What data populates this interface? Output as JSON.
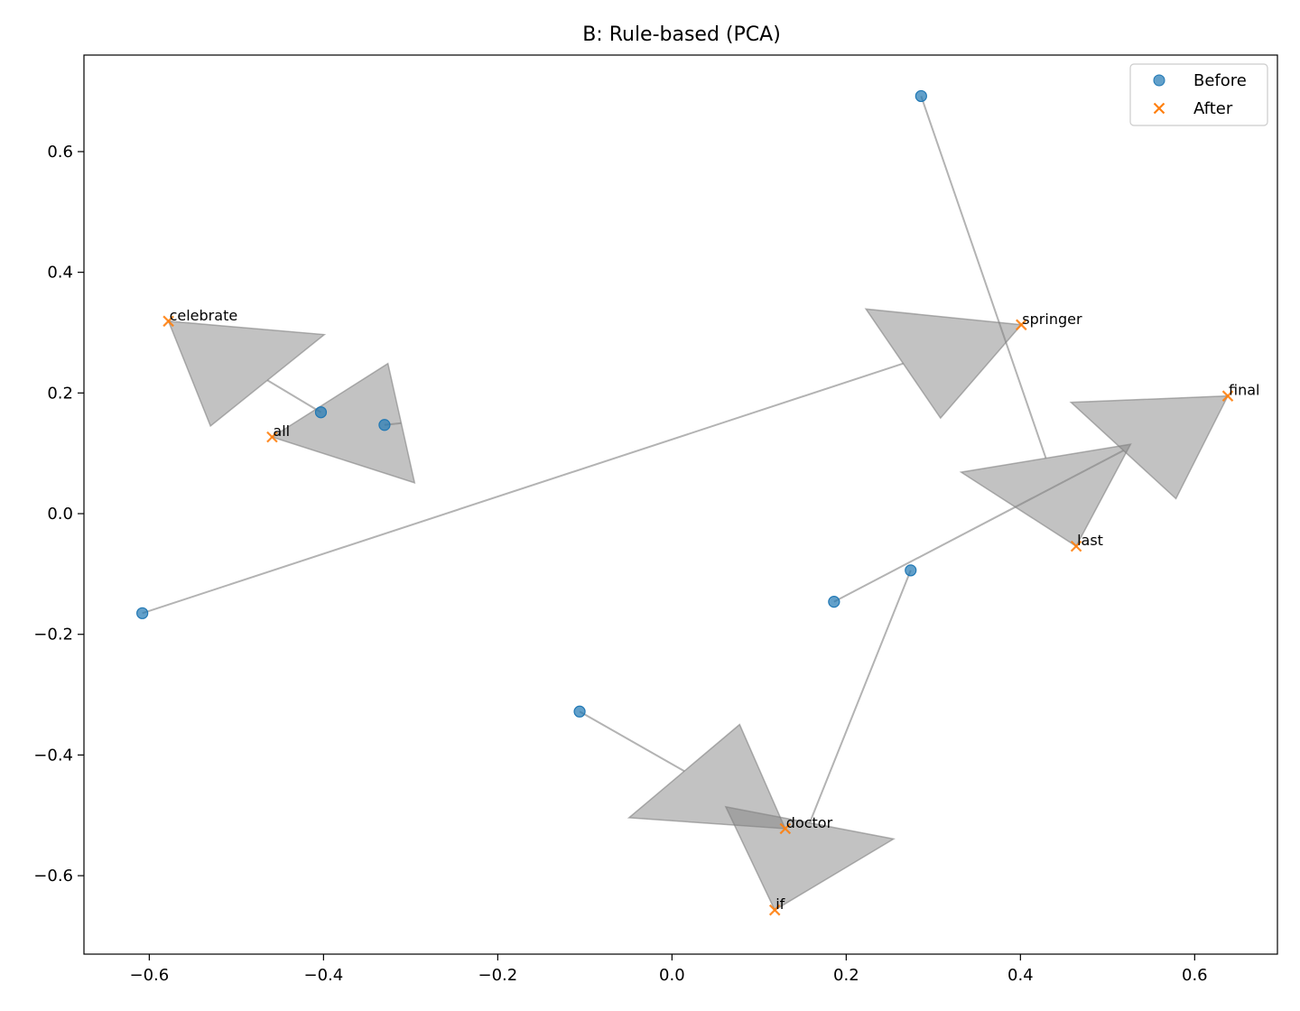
{
  "chart_data": {
    "type": "scatter",
    "title": "B: Rule-based (PCA)",
    "xlabel": "",
    "ylabel": "",
    "xlim": [
      -0.675,
      0.695
    ],
    "ylim": [
      -0.73,
      0.76
    ],
    "xticks": [
      -0.6,
      -0.4,
      -0.2,
      0.0,
      0.2,
      0.4,
      0.6
    ],
    "yticks": [
      -0.6,
      -0.4,
      -0.2,
      0.0,
      0.2,
      0.4,
      0.6
    ],
    "xtick_labels": [
      "−0.6",
      "−0.4",
      "−0.2",
      "0.0",
      "0.2",
      "0.4",
      "0.6"
    ],
    "ytick_labels": [
      "−0.6",
      "−0.4",
      "−0.2",
      "0.0",
      "0.2",
      "0.4",
      "0.6"
    ],
    "grid": false,
    "legend": {
      "placement": "top-right",
      "entries": [
        "Before",
        "After"
      ]
    },
    "series": [
      {
        "name": "Before",
        "marker": "circle",
        "color": "#1f77b4"
      },
      {
        "name": "After",
        "marker": "x",
        "color": "#ff7f0e"
      }
    ],
    "arrow_color": "#808080",
    "words": [
      {
        "label": "celebrate",
        "before": [
          -0.403,
          0.168
        ],
        "after": [
          -0.578,
          0.319
        ]
      },
      {
        "label": "all",
        "before": [
          -0.33,
          0.147
        ],
        "after": [
          -0.459,
          0.127
        ]
      },
      {
        "label": "springer",
        "before": [
          -0.608,
          -0.165
        ],
        "after": [
          0.401,
          0.313
        ]
      },
      {
        "label": "final",
        "before": [
          0.186,
          -0.146
        ],
        "after": [
          0.638,
          0.195
        ]
      },
      {
        "label": "last",
        "before": [
          0.286,
          0.692
        ],
        "after": [
          0.464,
          -0.054
        ]
      },
      {
        "label": "doctor",
        "before": [
          -0.106,
          -0.328
        ],
        "after": [
          0.13,
          -0.522
        ]
      },
      {
        "label": "if",
        "before": [
          0.274,
          -0.094
        ],
        "after": [
          0.118,
          -0.657
        ]
      }
    ]
  }
}
